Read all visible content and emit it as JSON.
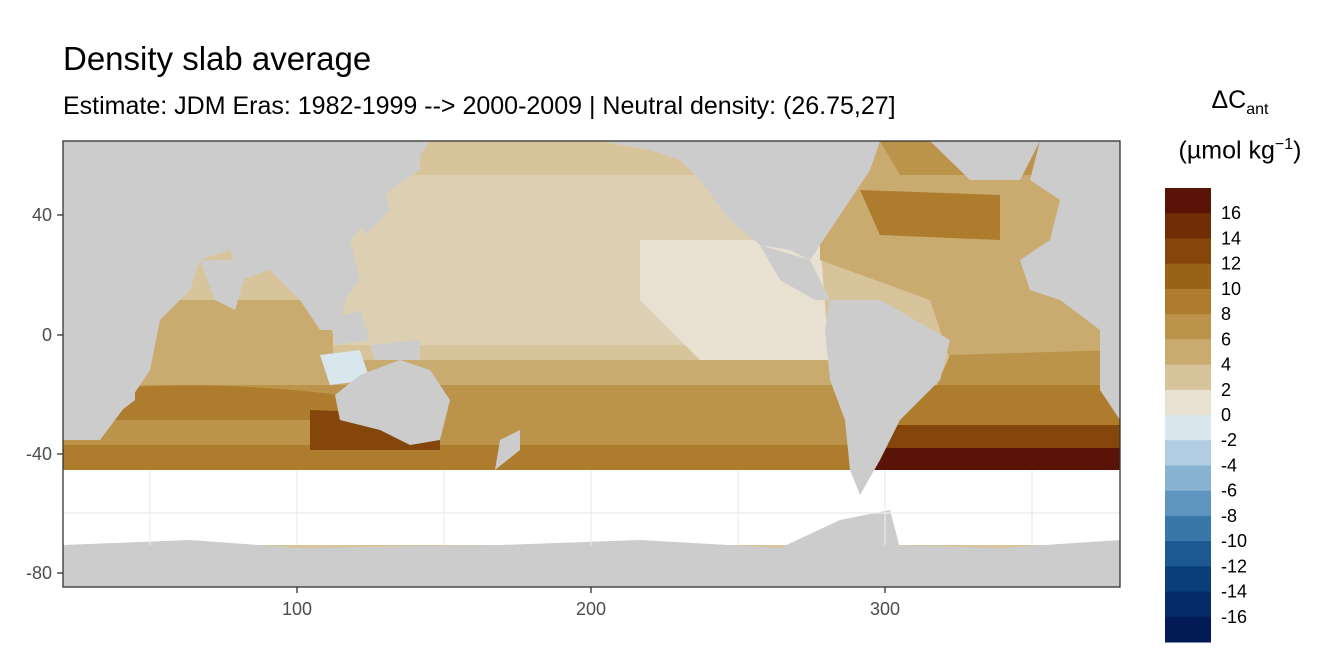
{
  "title": "Density slab average",
  "subtitle": "Estimate: JDM Eras: 1982-1999 --> 2000-2009 | Neutral density: (26.75,27]",
  "legend": {
    "title_symbol": "ΔC",
    "title_subscript": "ant",
    "unit_open": "(µmol kg",
    "unit_sup": "−1",
    "unit_close": ")",
    "labels": [
      "16",
      "14",
      "12",
      "10",
      "8",
      "6",
      "4",
      "2",
      "0",
      "-2",
      "-4",
      "-6",
      "-8",
      "-10",
      "-12",
      "-14",
      "-16"
    ],
    "colors": [
      "#5a1407",
      "#6f2e06",
      "#84460a",
      "#9a6217",
      "#ad7c2c",
      "#bc934a",
      "#c9ab70",
      "#d8c49b",
      "#e8e0d1",
      "#d9e6ee",
      "#b0cde2",
      "#87b3d1",
      "#5f96bf",
      "#3a77a9",
      "#1c5990",
      "#0a3e78",
      "#052c66",
      "#021a56"
    ]
  },
  "map": {
    "x_ticks": [
      "100",
      "200",
      "300"
    ],
    "y_ticks": [
      "40",
      "0",
      "-40",
      "-80"
    ],
    "colors": {
      "land": "#cccccc",
      "no_data": "#ffffff",
      "grid": "#ebebeb"
    }
  }
}
